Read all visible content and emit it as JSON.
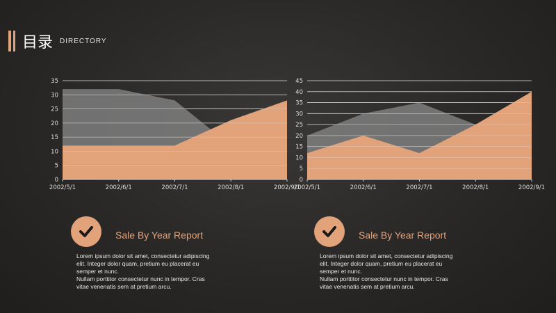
{
  "header": {
    "title": "目录",
    "subtitle": "DIRECTORY"
  },
  "colors": {
    "accent": "#e2a27a",
    "gray_area": "#8a8a8a"
  },
  "chart_data": [
    {
      "type": "area",
      "categories": [
        "2002/5/1",
        "2002/6/1",
        "2002/7/1",
        "2002/8/1",
        "2002/9/1"
      ],
      "series": [
        {
          "values": [
            32,
            32,
            28,
            12,
            10
          ]
        },
        {
          "values": [
            12,
            12,
            12,
            21,
            28
          ]
        }
      ],
      "yticks": [
        0,
        5,
        10,
        15,
        20,
        25,
        30,
        35
      ],
      "ylim": [
        0,
        35
      ],
      "grid": true
    },
    {
      "type": "area",
      "categories": [
        "2002/5/1",
        "2002/6/1",
        "2002/7/1",
        "2002/8/1",
        "2002/9/1"
      ],
      "series": [
        {
          "values": [
            20,
            30,
            35,
            25,
            15
          ]
        },
        {
          "values": [
            12,
            20,
            12,
            25,
            40
          ]
        }
      ],
      "yticks": [
        0,
        5,
        10,
        15,
        20,
        25,
        30,
        35,
        40,
        45
      ],
      "ylim": [
        0,
        45
      ],
      "grid": true
    }
  ],
  "cards": [
    {
      "icon": "check-icon",
      "title": "Sale By Year Report",
      "lines": [
        "Lorem ipsum dolor sit amet, consectetur adipiscing",
        "elit. Integer dolor quam, pretium eu placerat eu",
        "semper et nunc.",
        "Nullam porttitor consectetur nunc in tempor. Cras",
        "vitae venenatis sem at pretium arcu."
      ]
    },
    {
      "icon": "check-icon",
      "title": "Sale By Year Report",
      "lines": [
        "Lorem ipsum dolor sit amet, consectetur adipiscing",
        "elit. Integer dolor quam, pretium eu placerat eu",
        "semper et nunc.",
        "Nullam porttitor consectetur nunc in tempor. Cras",
        "vitae venenatis sem at pretium arcu."
      ]
    }
  ]
}
